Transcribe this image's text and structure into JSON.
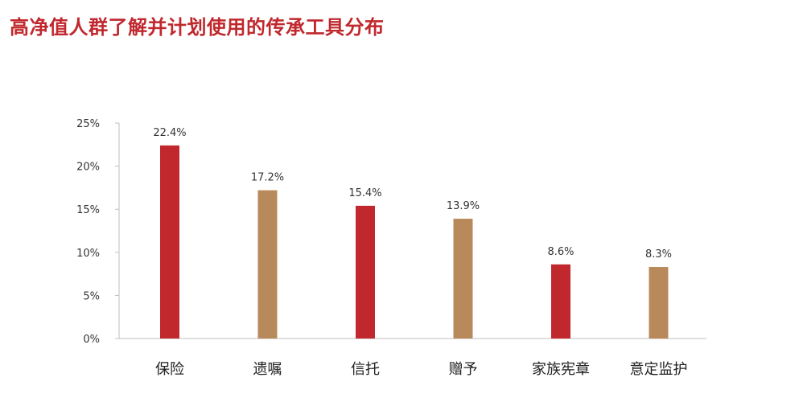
{
  "title": "高净值人群了解并计划使用的传承工具分布",
  "colors": {
    "title": "#c0282d",
    "bar_red": "#c0282d",
    "bar_tan": "#b8895a",
    "axis": "#bfbfbf"
  },
  "chart_data": {
    "type": "bar",
    "categories": [
      "保险",
      "遗嘱",
      "信托",
      "赠予",
      "家族宪章",
      "意定监护"
    ],
    "values": [
      22.4,
      17.2,
      15.4,
      13.9,
      8.6,
      8.3
    ],
    "value_labels": [
      "22.4%",
      "17.2%",
      "15.4%",
      "13.9%",
      "8.6%",
      "8.3%"
    ],
    "bar_colors": [
      "#c0282d",
      "#b8895a",
      "#c0282d",
      "#b8895a",
      "#c0282d",
      "#b8895a"
    ],
    "yticks": [
      0,
      5,
      10,
      15,
      20,
      25
    ],
    "ytick_labels": [
      "0%",
      "5%",
      "10%",
      "15%",
      "20%",
      "25%"
    ],
    "ylim": [
      0,
      25
    ],
    "grid": false,
    "legend": false
  }
}
